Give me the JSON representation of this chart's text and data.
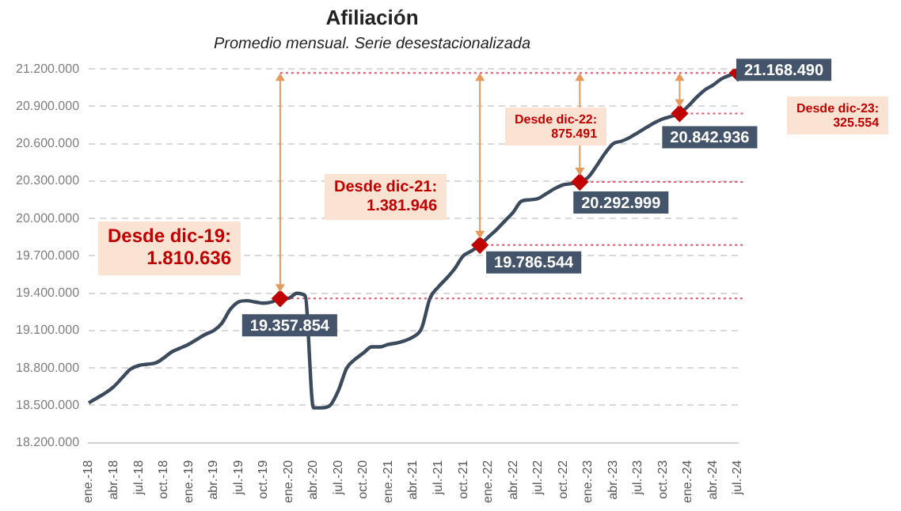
{
  "chart_data": {
    "type": "line",
    "title": "Afiliación",
    "subtitle": "Promedio mensual. Serie desestacionalizada",
    "categories": [
      "ene.-18",
      null,
      null,
      "abr.-18",
      null,
      null,
      "jul.-18",
      null,
      null,
      "oct.-18",
      null,
      null,
      "ene.-19",
      null,
      null,
      "abr.-19",
      null,
      null,
      "jul.-19",
      null,
      null,
      "oct.-19",
      null,
      null,
      "ene.-20",
      null,
      null,
      "abr.-20",
      null,
      null,
      "jul.-20",
      null,
      null,
      "oct.-20",
      null,
      null,
      "ene.-21",
      null,
      null,
      "abr.-21",
      null,
      null,
      "jul.-21",
      null,
      null,
      "oct.-21",
      null,
      null,
      "ene.-22",
      null,
      null,
      "abr.-22",
      null,
      null,
      "jul.-22",
      null,
      null,
      "oct.-22",
      null,
      null,
      "ene.-23",
      null,
      null,
      "abr.-23",
      null,
      null,
      "jul.-23",
      null,
      null,
      "oct.-23",
      null,
      null,
      "ene.-24",
      null,
      null,
      "abr.-24",
      null,
      null,
      "jul.-24"
    ],
    "color": "#3b4a5c",
    "values": [
      18520000,
      18560000,
      18600000,
      18650000,
      18720000,
      18790000,
      18820000,
      18830000,
      18840000,
      18880000,
      18930000,
      18960000,
      18990000,
      19030000,
      19070000,
      19100000,
      19160000,
      19270000,
      19330000,
      19340000,
      19330000,
      19320000,
      19330000,
      19357854,
      19360000,
      19400000,
      19380000,
      18480000,
      18480000,
      18500000,
      18620000,
      18800000,
      18870000,
      18920000,
      18970000,
      18970000,
      18990000,
      19000000,
      19020000,
      19050000,
      19120000,
      19360000,
      19450000,
      19520000,
      19600000,
      19700000,
      19740000,
      19786544,
      19850000,
      19910000,
      19980000,
      20050000,
      20140000,
      20150000,
      20160000,
      20200000,
      20240000,
      20270000,
      20280000,
      20292999,
      20330000,
      20420000,
      20520000,
      20600000,
      20620000,
      20650000,
      20690000,
      20730000,
      20770000,
      20800000,
      20820000,
      20842936,
      20900000,
      20970000,
      21030000,
      21070000,
      21120000,
      21150000,
      21168490
    ],
    "value_labels": [
      null,
      null,
      null,
      null,
      null,
      null,
      null,
      null,
      null,
      null,
      null,
      null,
      null,
      null,
      null,
      null,
      null,
      null,
      null,
      null,
      null,
      null,
      null,
      "19.357.854",
      null,
      null,
      null,
      null,
      null,
      null,
      null,
      null,
      null,
      null,
      null,
      null,
      null,
      null,
      null,
      null,
      null,
      null,
      null,
      null,
      null,
      null,
      null,
      "19.786.544",
      null,
      null,
      null,
      null,
      null,
      null,
      null,
      null,
      null,
      null,
      null,
      "20.292.999",
      null,
      null,
      null,
      null,
      null,
      null,
      null,
      null,
      null,
      null,
      null,
      "20.842.936",
      null,
      null,
      null,
      null,
      null,
      null,
      "21.168.490"
    ],
    "ylim": [
      18200000,
      21200000
    ],
    "yticks": [
      {
        "value": 18200000,
        "label": "18.200.000"
      },
      {
        "value": 18500000,
        "label": "18.500.000"
      },
      {
        "value": 18800000,
        "label": "18.800.000"
      },
      {
        "value": 19100000,
        "label": "19.100.000"
      },
      {
        "value": 19400000,
        "label": "19.400.000"
      },
      {
        "value": 19700000,
        "label": "19.700.000"
      },
      {
        "value": 20000000,
        "label": "20.000.000"
      },
      {
        "value": 20300000,
        "label": "20.300.000"
      },
      {
        "value": 20600000,
        "label": "20.600.000"
      },
      {
        "value": 20900000,
        "label": "20.900.000"
      },
      {
        "value": 21200000,
        "label": "21.200.000"
      }
    ],
    "grid": "y",
    "ref_lines": [
      {
        "axis": "y",
        "value": 19357854,
        "color": "#e0506a",
        "line_style": "dotted"
      },
      {
        "axis": "y",
        "value": 19786544,
        "color": "#e0506a",
        "line_style": "dotted"
      },
      {
        "axis": "y",
        "value": 20292999,
        "color": "#e0506a",
        "line_style": "dotted"
      },
      {
        "axis": "y",
        "value": 20842936,
        "color": "#e0506a",
        "line_style": "dotted"
      },
      {
        "axis": "y",
        "value": 21168490,
        "color": "#e0506a",
        "line_style": "dotted"
      }
    ],
    "annotations": [
      "Desde dic-19:\n1.810.636",
      "Desde dic-21:\n1.381.946",
      "Desde dic-22:\n875.491",
      "Desde dic-23:\n325.554"
    ]
  }
}
